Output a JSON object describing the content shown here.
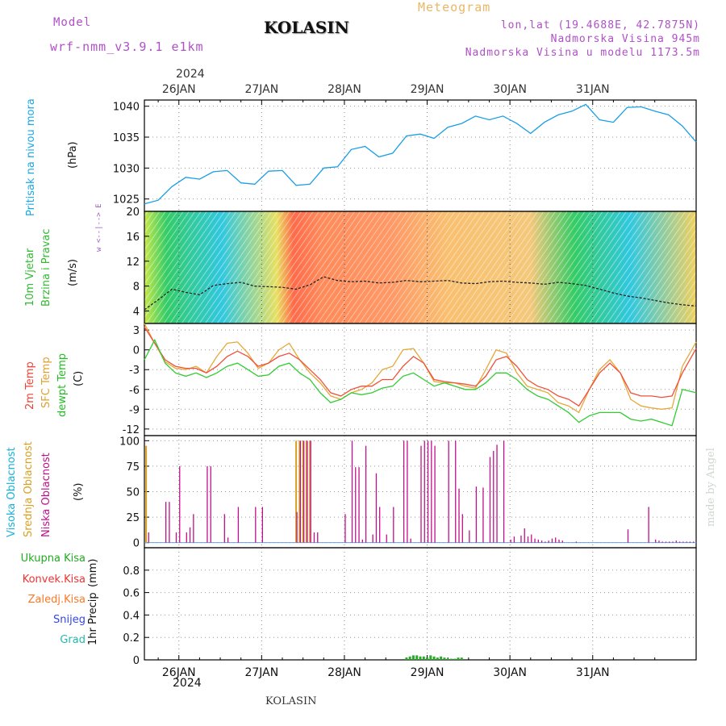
{
  "header": {
    "model_label": "Model",
    "model_name": "wrf-nmm_v3.9.1 e1km",
    "station": "KOLASIN",
    "meteogram": "Meteogram",
    "lonlat": "lon,lat (19.4688E, 42.7875N)",
    "elevation": "Nadmorska Visina 945m",
    "elevation_model": "Nadmorska Visina u modelu 1173.5m"
  },
  "footer": {
    "station": "KOLASIN",
    "credit": "made by Angel"
  },
  "colors": {
    "pressure": "#1a9fe6",
    "temp2m": "#f0503a",
    "sfc": "#e6a83a",
    "dewpt": "#33cc33",
    "high_cloud": "#19b0d8",
    "mid_cloud": "#d9a020",
    "low_cloud": "#c0108a",
    "total_precip": "#2aaa2a",
    "conv": "#ee3333",
    "frozen": "#ff7722",
    "snow": "#3344ee",
    "hail": "#22bbaa"
  },
  "time_axis": {
    "year": "2024",
    "days": [
      "26JAN",
      "27JAN",
      "28JAN",
      "29JAN",
      "30JAN",
      "31JAN"
    ],
    "start_hour": -10,
    "end_hour": 150
  },
  "chart_data": [
    {
      "type": "line",
      "ylabel": "Pritisak na nivou mora",
      "unit": "(hPa)",
      "ylim": [
        1023,
        1041
      ],
      "yticks": [
        "1025",
        "1030",
        "1035",
        "1040"
      ],
      "grid": true,
      "series": [
        {
          "hour": [
            -10,
            -6,
            -2,
            2,
            6,
            10,
            14,
            18,
            22,
            26,
            30,
            34,
            38,
            42,
            46,
            50,
            54,
            58,
            62,
            66,
            70,
            74,
            78,
            82,
            86,
            90,
            94,
            98,
            102,
            106,
            110,
            114,
            118,
            122,
            126,
            130,
            134,
            138,
            142,
            146,
            150
          ],
          "value": [
            1024.2,
            1024.8,
            1027.0,
            1028.5,
            1028.2,
            1029.4,
            1029.6,
            1027.6,
            1027.4,
            1029.5,
            1029.6,
            1027.2,
            1027.4,
            1030.0,
            1030.2,
            1033.0,
            1033.5,
            1031.8,
            1032.4,
            1035.2,
            1035.5,
            1034.8,
            1036.6,
            1037.2,
            1038.4,
            1037.8,
            1038.4,
            1037.2,
            1035.6,
            1037.4,
            1038.6,
            1039.2,
            1040.3,
            1037.8,
            1037.4,
            1039.8,
            1039.9,
            1039.2,
            1038.6,
            1036.8,
            1034.2
          ]
        }
      ]
    },
    {
      "type": "area",
      "ylabel": "10m Vjetar Brzina i Pravac",
      "unit": "(m/s)",
      "ylim": [
        2,
        20
      ],
      "yticks": [
        "4",
        "8",
        "12",
        "16",
        "20"
      ],
      "direction_key": "w <--|--> E",
      "grid": true,
      "series": [
        {
          "hour": [
            -10,
            -6,
            -2,
            2,
            6,
            10,
            14,
            18,
            22,
            26,
            30,
            34,
            38,
            42,
            46,
            50,
            54,
            58,
            62,
            66,
            70,
            74,
            78,
            82,
            86,
            90,
            94,
            98,
            102,
            106,
            110,
            114,
            118,
            122,
            126,
            130,
            134,
            138,
            142,
            146,
            150
          ],
          "value": [
            4.2,
            5.8,
            7.5,
            7.0,
            6.6,
            8.1,
            8.4,
            8.6,
            8.0,
            7.9,
            7.8,
            7.5,
            8.2,
            9.5,
            8.9,
            8.7,
            8.8,
            8.5,
            8.6,
            8.9,
            8.7,
            8.8,
            8.9,
            8.5,
            8.4,
            8.7,
            8.8,
            8.6,
            8.5,
            8.3,
            8.6,
            8.4,
            8.1,
            7.5,
            6.9,
            6.4,
            6.1,
            5.7,
            5.3,
            5.0,
            4.8
          ]
        }
      ]
    },
    {
      "type": "line",
      "ylabel": "2m Temp / SFC Temp / dewpt Temp",
      "unit": "(C)",
      "ylim": [
        -13,
        4
      ],
      "yticks": [
        "3",
        "0",
        "-3",
        "-6",
        "-9",
        "-12"
      ],
      "grid": true,
      "series": [
        {
          "name": "2m Temp",
          "hour": [
            -10,
            -7,
            -4,
            -1,
            2,
            5,
            8,
            11,
            14,
            17,
            20,
            23,
            26,
            29,
            32,
            35,
            38,
            41,
            44,
            47,
            50,
            53,
            56,
            59,
            62,
            65,
            68,
            71,
            74,
            77,
            80,
            83,
            86,
            89,
            92,
            95,
            98,
            101,
            104,
            107,
            110,
            113,
            116,
            119,
            122,
            125,
            128,
            131,
            134,
            137,
            140,
            143,
            146,
            150
          ],
          "value": [
            3.5,
            1.0,
            -1.5,
            -2.5,
            -2.8,
            -2.8,
            -3.5,
            -2.5,
            -1.0,
            -0.2,
            -1.0,
            -2.5,
            -2.0,
            -1.0,
            -0.5,
            -1.5,
            -3.0,
            -4.5,
            -6.5,
            -7.0,
            -6.0,
            -5.5,
            -5.5,
            -4.5,
            -4.5,
            -2.5,
            -1.0,
            -2.0,
            -4.5,
            -4.8,
            -5.0,
            -5.2,
            -5.5,
            -4.0,
            -1.5,
            -1.0,
            -2.5,
            -4.5,
            -5.5,
            -6.0,
            -7.0,
            -7.5,
            -8.5,
            -6.0,
            -3.5,
            -2.0,
            -3.5,
            -6.5,
            -7.0,
            -7.0,
            -7.2,
            -7.0,
            -3.5,
            0.2
          ]
        },
        {
          "name": "SFC Temp",
          "hour": [
            -10,
            -7,
            -4,
            -1,
            2,
            5,
            8,
            11,
            14,
            17,
            20,
            23,
            26,
            29,
            32,
            35,
            38,
            41,
            44,
            47,
            50,
            53,
            56,
            59,
            62,
            65,
            68,
            71,
            74,
            77,
            80,
            83,
            86,
            89,
            92,
            95,
            98,
            101,
            104,
            107,
            110,
            113,
            116,
            119,
            122,
            125,
            128,
            131,
            134,
            137,
            140,
            143,
            146,
            150
          ],
          "value": [
            4.0,
            1.0,
            -1.8,
            -2.8,
            -3.0,
            -2.5,
            -3.5,
            -1.0,
            1.0,
            1.2,
            -0.5,
            -2.8,
            -2.0,
            0.0,
            1.0,
            -1.5,
            -3.5,
            -5.0,
            -7.0,
            -7.5,
            -6.5,
            -6.0,
            -5.0,
            -3.0,
            -2.5,
            0.0,
            0.2,
            -2.0,
            -4.8,
            -5.0,
            -5.0,
            -5.5,
            -5.8,
            -3.0,
            0.0,
            -0.5,
            -3.5,
            -5.5,
            -6.0,
            -6.5,
            -8.0,
            -8.5,
            -9.5,
            -6.0,
            -3.0,
            -1.5,
            -3.5,
            -7.5,
            -8.5,
            -8.8,
            -9.0,
            -8.8,
            -2.5,
            1.2
          ]
        },
        {
          "name": "dewpt Temp",
          "hour": [
            -10,
            -7,
            -4,
            -1,
            2,
            5,
            8,
            11,
            14,
            17,
            20,
            23,
            26,
            29,
            32,
            35,
            38,
            41,
            44,
            47,
            50,
            53,
            56,
            59,
            62,
            65,
            68,
            71,
            74,
            77,
            80,
            83,
            86,
            89,
            92,
            95,
            98,
            101,
            104,
            107,
            110,
            113,
            116,
            119,
            122,
            125,
            128,
            131,
            134,
            137,
            140,
            143,
            146,
            150
          ],
          "value": [
            -1.5,
            1.5,
            -2.0,
            -3.5,
            -4.0,
            -3.5,
            -4.2,
            -3.5,
            -2.5,
            -2.0,
            -3.0,
            -4.0,
            -3.8,
            -2.5,
            -2.0,
            -3.5,
            -4.5,
            -6.5,
            -8.0,
            -7.5,
            -6.5,
            -6.8,
            -6.5,
            -5.8,
            -5.5,
            -4.0,
            -3.5,
            -4.5,
            -5.5,
            -5.0,
            -5.5,
            -6.0,
            -6.0,
            -5.0,
            -3.5,
            -3.5,
            -4.5,
            -6.0,
            -7.0,
            -7.5,
            -8.5,
            -9.5,
            -11.0,
            -10.0,
            -9.5,
            -9.5,
            -9.5,
            -10.5,
            -10.8,
            -10.5,
            -11.0,
            -11.5,
            -6.0,
            -6.5
          ]
        }
      ]
    },
    {
      "type": "bar",
      "ylabel": "Visoka Oblacnost / Srednja Oblacnost / Niska Oblacnost",
      "unit": "(%)",
      "ylim": [
        -5,
        105
      ],
      "yticks": [
        "0",
        "25",
        "50",
        "75",
        "100"
      ],
      "grid": true,
      "series": [
        {
          "name": "Srednja Oblacnost",
          "hour": [
            -9.5,
            34,
            35,
            36,
            37,
            38
          ],
          "value": [
            95,
            100,
            100,
            100,
            100,
            100
          ]
        },
        {
          "name": "Niska Oblacnost",
          "hour": [
            -9,
            -4,
            -3,
            -1,
            0,
            2,
            3,
            4,
            5,
            8,
            9,
            13,
            14,
            17,
            20,
            22,
            24,
            26,
            34,
            35,
            36,
            37,
            38,
            39,
            40,
            48,
            50,
            51,
            52,
            53,
            54,
            56,
            57,
            58,
            60,
            62,
            65,
            66,
            67,
            70,
            71,
            72,
            73,
            74,
            78,
            80,
            81,
            82,
            84,
            86,
            88,
            90,
            91,
            92,
            94,
            96,
            97,
            99,
            100,
            101,
            102,
            103,
            104,
            105,
            106,
            107,
            108,
            109,
            110,
            111,
            115,
            130,
            136,
            138,
            139,
            140,
            141,
            142,
            143,
            144,
            145,
            146,
            147,
            148,
            149
          ],
          "value": [
            10,
            40,
            40,
            10,
            75,
            10,
            15,
            28,
            0,
            75,
            75,
            28,
            5,
            35,
            0,
            35,
            35,
            0,
            30,
            100,
            100,
            100,
            100,
            10,
            10,
            28,
            100,
            74,
            74,
            3,
            95,
            8,
            68,
            35,
            8,
            35,
            100,
            100,
            4,
            95,
            100,
            100,
            100,
            95,
            100,
            100,
            53,
            28,
            12,
            55,
            54,
            84,
            90,
            96,
            100,
            3,
            6,
            7,
            14,
            6,
            8,
            4,
            3,
            2,
            1,
            2,
            4,
            5,
            3,
            2,
            1,
            13,
            35,
            3,
            2,
            1,
            1,
            1,
            1,
            2,
            1,
            1,
            1,
            1,
            1
          ]
        }
      ]
    },
    {
      "type": "bar",
      "ylabel": "1hr Precip",
      "unit": "(mm)",
      "ylim": [
        0,
        1.0
      ],
      "yticks": [
        "0",
        "0.2",
        "0.4",
        "0.6",
        "0.8"
      ],
      "grid": true,
      "series": [
        {
          "name": "Ukupna Kisa",
          "hour": [
            66,
            67,
            68,
            69,
            70,
            71,
            72,
            73,
            74,
            75,
            76,
            77,
            78,
            79,
            80,
            81,
            82
          ],
          "value": [
            0.02,
            0.03,
            0.04,
            0.04,
            0.03,
            0.03,
            0.02,
            0.04,
            0.03,
            0.02,
            0.03,
            0.02,
            0.01,
            0.01,
            0.01,
            0.02,
            0.02
          ]
        }
      ],
      "legend": [
        "Ukupna Kisa",
        "Konvek.Kisa",
        "Zaledj.Kisa",
        "Snijeg",
        "Grad"
      ]
    }
  ]
}
